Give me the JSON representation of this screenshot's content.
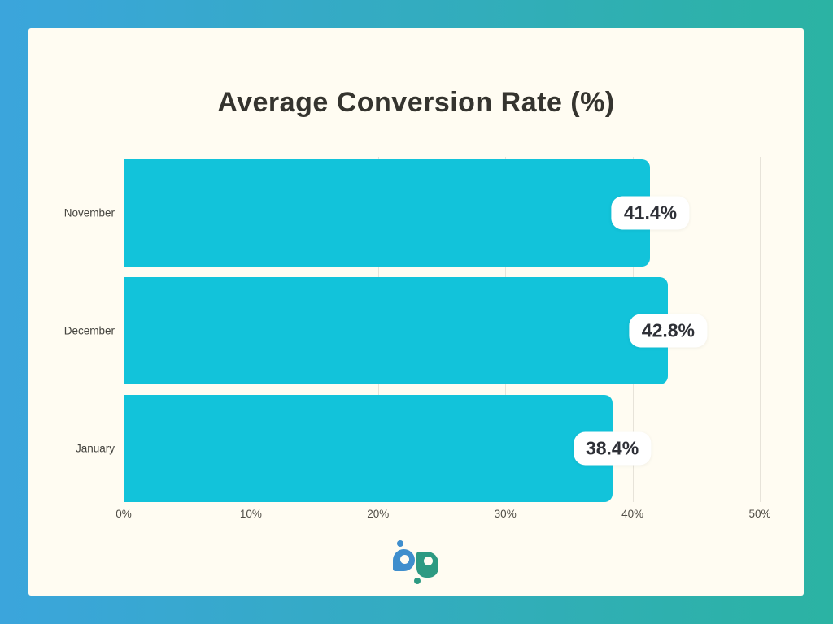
{
  "frame": {
    "border_gradient_start": "#3BA5DC",
    "border_gradient_end": "#2BB3A3",
    "card_background": "#FFFCF2"
  },
  "chart_data": {
    "type": "bar",
    "orientation": "horizontal",
    "title": "Average Conversion Rate (%)",
    "categories": [
      "November",
      "December",
      "January"
    ],
    "values": [
      41.4,
      42.8,
      38.4
    ],
    "value_labels": [
      "41.4%",
      "42.8%",
      "38.4%"
    ],
    "x_ticks": [
      "0%",
      "10%",
      "20%",
      "30%",
      "40%",
      "50%"
    ],
    "x_tick_values": [
      0,
      10,
      20,
      30,
      40,
      50
    ],
    "xlim": [
      0,
      50
    ],
    "xlabel": "",
    "ylabel": "",
    "grid": true,
    "legend": false,
    "bar_color": "#12C3DA",
    "gridline_color": "#E7E3D9",
    "value_badge_background": "#FFFFFF"
  },
  "logo": {
    "name": "bp-logo",
    "b_color": "#3F8ECD",
    "p_color": "#2D9A82"
  }
}
